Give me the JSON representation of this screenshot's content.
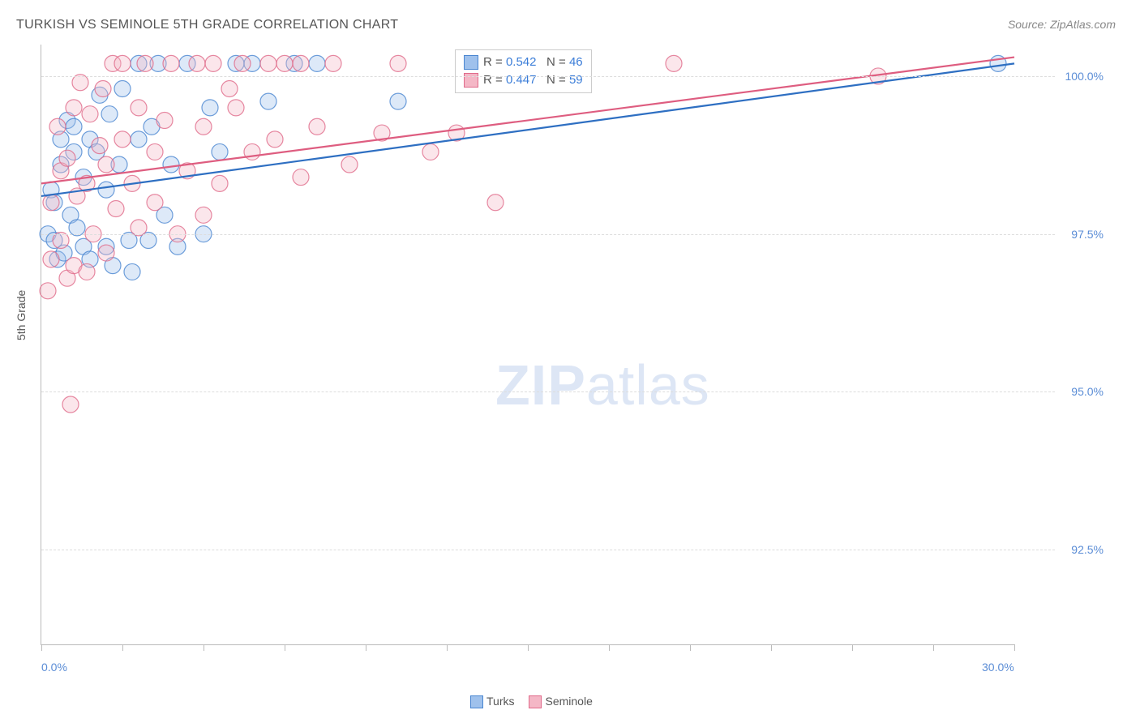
{
  "title": "TURKISH VS SEMINOLE 5TH GRADE CORRELATION CHART",
  "source": "Source: ZipAtlas.com",
  "ylabel": "5th Grade",
  "watermark_zip": "ZIP",
  "watermark_atlas": "atlas",
  "chart": {
    "type": "scatter-with-trend",
    "xlim": [
      0,
      30
    ],
    "ylim": [
      91,
      100.5
    ],
    "xtick_positions": [
      0,
      2.5,
      5,
      7.5,
      10,
      12.5,
      15,
      17.5,
      20,
      22.5,
      25,
      27.5,
      30
    ],
    "xtick_labels": {
      "0": "0.0%",
      "30": "30.0%"
    },
    "ytick_positions": [
      92.5,
      95.0,
      97.5,
      100.0
    ],
    "ytick_labels": [
      "92.5%",
      "95.0%",
      "97.5%",
      "100.0%"
    ],
    "grid_color": "#dddddd",
    "axis_color": "#bbbbbb",
    "background_color": "#ffffff",
    "marker_radius": 10,
    "marker_fill_opacity": 0.35,
    "marker_stroke_opacity": 0.8,
    "marker_stroke_width": 1.2,
    "line_width": 2.2,
    "series": [
      {
        "name": "Turks",
        "color_fill": "#9fc1ec",
        "color_stroke": "#4a86d1",
        "line_color": "#2e6fc2",
        "R_label": "R = ",
        "R": "0.542",
        "N_label": "N = ",
        "N": "46",
        "trend": {
          "x0": 0,
          "y0": 98.1,
          "x1": 30,
          "y1": 100.2
        },
        "points": [
          [
            0.2,
            97.5
          ],
          [
            0.3,
            98.2
          ],
          [
            0.4,
            97.4
          ],
          [
            0.4,
            98.0
          ],
          [
            0.5,
            97.1
          ],
          [
            0.6,
            98.6
          ],
          [
            0.6,
            99.0
          ],
          [
            0.7,
            97.2
          ],
          [
            0.8,
            99.3
          ],
          [
            0.9,
            97.8
          ],
          [
            1.0,
            98.8
          ],
          [
            1.0,
            99.2
          ],
          [
            1.1,
            97.6
          ],
          [
            1.3,
            97.3
          ],
          [
            1.3,
            98.4
          ],
          [
            1.5,
            97.1
          ],
          [
            1.5,
            99.0
          ],
          [
            1.7,
            98.8
          ],
          [
            1.8,
            99.7
          ],
          [
            2.0,
            97.3
          ],
          [
            2.0,
            98.2
          ],
          [
            2.1,
            99.4
          ],
          [
            2.2,
            97.0
          ],
          [
            2.4,
            98.6
          ],
          [
            2.5,
            99.8
          ],
          [
            2.7,
            97.4
          ],
          [
            2.8,
            96.9
          ],
          [
            3.0,
            99.0
          ],
          [
            3.0,
            100.2
          ],
          [
            3.3,
            97.4
          ],
          [
            3.4,
            99.2
          ],
          [
            3.6,
            100.2
          ],
          [
            3.8,
            97.8
          ],
          [
            4.0,
            98.6
          ],
          [
            4.2,
            97.3
          ],
          [
            4.5,
            100.2
          ],
          [
            5.0,
            97.5
          ],
          [
            5.2,
            99.5
          ],
          [
            5.5,
            98.8
          ],
          [
            6.0,
            100.2
          ],
          [
            6.5,
            100.2
          ],
          [
            7.0,
            99.6
          ],
          [
            7.8,
            100.2
          ],
          [
            8.5,
            100.2
          ],
          [
            11.0,
            99.6
          ],
          [
            29.5,
            100.2
          ]
        ]
      },
      {
        "name": "Seminole",
        "color_fill": "#f4b7c6",
        "color_stroke": "#e06a8a",
        "line_color": "#de5d80",
        "R_label": "R = ",
        "R": "0.447",
        "N_label": "N = ",
        "N": "59",
        "trend": {
          "x0": 0,
          "y0": 98.3,
          "x1": 30,
          "y1": 100.3
        },
        "points": [
          [
            0.2,
            96.6
          ],
          [
            0.3,
            97.1
          ],
          [
            0.3,
            98.0
          ],
          [
            0.5,
            99.2
          ],
          [
            0.6,
            97.4
          ],
          [
            0.6,
            98.5
          ],
          [
            0.8,
            96.8
          ],
          [
            0.8,
            98.7
          ],
          [
            0.9,
            94.8
          ],
          [
            1.0,
            97.0
          ],
          [
            1.0,
            99.5
          ],
          [
            1.1,
            98.1
          ],
          [
            1.2,
            99.9
          ],
          [
            1.4,
            96.9
          ],
          [
            1.4,
            98.3
          ],
          [
            1.5,
            99.4
          ],
          [
            1.6,
            97.5
          ],
          [
            1.8,
            98.9
          ],
          [
            1.9,
            99.8
          ],
          [
            2.0,
            97.2
          ],
          [
            2.0,
            98.6
          ],
          [
            2.2,
            100.2
          ],
          [
            2.3,
            97.9
          ],
          [
            2.5,
            99.0
          ],
          [
            2.5,
            100.2
          ],
          [
            2.8,
            98.3
          ],
          [
            3.0,
            97.6
          ],
          [
            3.0,
            99.5
          ],
          [
            3.2,
            100.2
          ],
          [
            3.5,
            98.0
          ],
          [
            3.5,
            98.8
          ],
          [
            3.8,
            99.3
          ],
          [
            4.0,
            100.2
          ],
          [
            4.2,
            97.5
          ],
          [
            4.5,
            98.5
          ],
          [
            4.8,
            100.2
          ],
          [
            5.0,
            97.8
          ],
          [
            5.0,
            99.2
          ],
          [
            5.3,
            100.2
          ],
          [
            5.5,
            98.3
          ],
          [
            5.8,
            99.8
          ],
          [
            6.0,
            99.5
          ],
          [
            6.2,
            100.2
          ],
          [
            6.5,
            98.8
          ],
          [
            7.0,
            100.2
          ],
          [
            7.2,
            99.0
          ],
          [
            7.5,
            100.2
          ],
          [
            8.0,
            98.4
          ],
          [
            8.0,
            100.2
          ],
          [
            8.5,
            99.2
          ],
          [
            9.0,
            100.2
          ],
          [
            9.5,
            98.6
          ],
          [
            10.5,
            99.1
          ],
          [
            11.0,
            100.2
          ],
          [
            12.0,
            98.8
          ],
          [
            12.8,
            99.1
          ],
          [
            14.0,
            98.0
          ],
          [
            19.5,
            100.2
          ],
          [
            25.8,
            100.0
          ]
        ]
      }
    ]
  },
  "legend_bottom": [
    {
      "label": "Turks",
      "fill": "#9fc1ec",
      "stroke": "#4a86d1"
    },
    {
      "label": "Seminole",
      "fill": "#f4b7c6",
      "stroke": "#e06a8a"
    }
  ]
}
